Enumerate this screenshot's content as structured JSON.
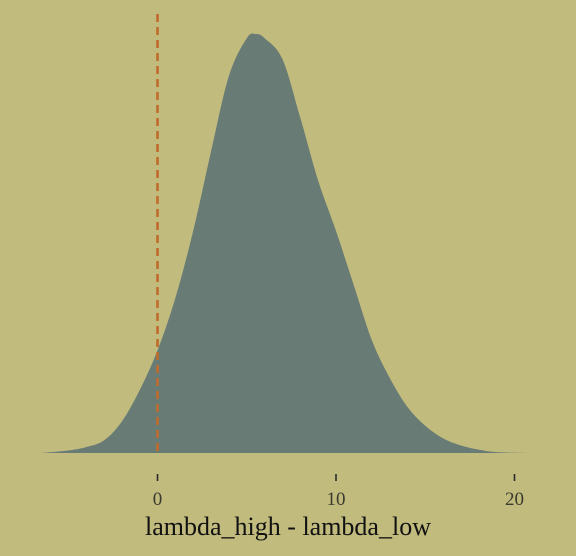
{
  "chart_data": {
    "type": "area",
    "title": "",
    "xlabel": "lambda_high - lambda_low",
    "ylabel": "",
    "xlim": [
      -6.5,
      21
    ],
    "ylim": [
      0,
      1
    ],
    "xticks": [
      0,
      10,
      20
    ],
    "xtick_labels": [
      "0",
      "10",
      "20"
    ],
    "grid": false,
    "legend": "none",
    "reference_line": {
      "x": 0,
      "style": "dashed",
      "color": "#c06a2b"
    },
    "series": [
      {
        "x": [
          -6.5,
          -5,
          -4,
          -3,
          -2,
          -1,
          0,
          1,
          2,
          3,
          4,
          5,
          5.5,
          6,
          7,
          8,
          9,
          10,
          11,
          12,
          13,
          14,
          15,
          16,
          17,
          18,
          19,
          21
        ],
        "values": [
          0.0,
          0.006,
          0.014,
          0.03,
          0.075,
          0.15,
          0.245,
          0.37,
          0.53,
          0.72,
          0.9,
          0.99,
          1.0,
          0.99,
          0.94,
          0.8,
          0.65,
          0.53,
          0.4,
          0.27,
          0.18,
          0.11,
          0.065,
          0.035,
          0.018,
          0.008,
          0.002,
          0.0
        ],
        "color": "#687b74"
      }
    ],
    "colors": {
      "background": "#c1bb7e",
      "fill": "#687b74",
      "reference_line": "#c06a2b",
      "tick": "#2a2a2a"
    }
  }
}
